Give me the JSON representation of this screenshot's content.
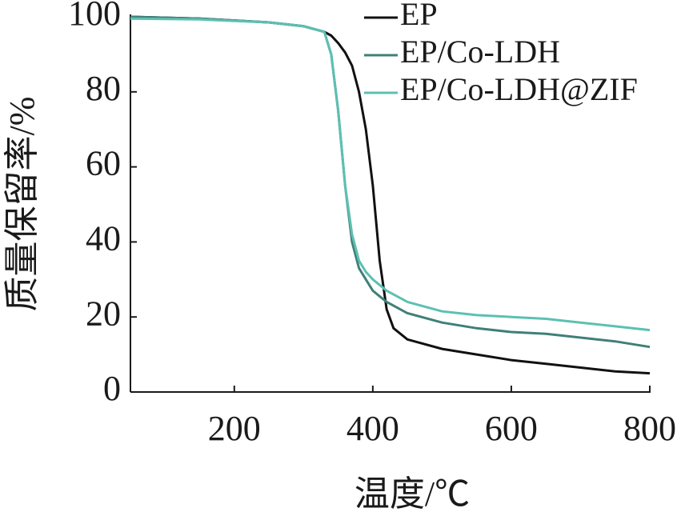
{
  "chart_data": {
    "type": "line",
    "xlabel": "温度/℃",
    "ylabel": "质量保留率/%",
    "x": [
      50,
      150,
      250,
      300,
      330,
      340,
      350,
      360,
      370,
      380,
      390,
      400,
      410,
      420,
      430,
      450,
      500,
      550,
      600,
      650,
      700,
      750,
      800
    ],
    "series": [
      {
        "name": "EP",
        "color": "#111111",
        "values": [
          100,
          99.5,
          98.5,
          97.5,
          96,
          95,
          93,
          90.5,
          87,
          80,
          70,
          55,
          35,
          22,
          17,
          14,
          11.5,
          10,
          8.5,
          7.5,
          6.5,
          5.5,
          5
        ]
      },
      {
        "name": "EP/Co-LDH",
        "color": "#3f8078",
        "values": [
          100,
          99.5,
          98.5,
          97.5,
          96,
          90,
          75,
          55,
          40,
          33,
          30,
          27,
          25.5,
          24,
          23,
          21,
          18.5,
          17,
          16,
          15.5,
          14.5,
          13.5,
          12
        ]
      },
      {
        "name": "EP/Co-LDH@ZIF",
        "color": "#5cc0b2",
        "values": [
          99.5,
          99.3,
          98.5,
          97.5,
          96,
          90,
          75,
          55,
          42,
          35,
          32,
          30,
          28.5,
          27,
          26,
          24,
          21.5,
          20.5,
          20,
          19.5,
          18.5,
          17.5,
          16.5
        ]
      }
    ],
    "xlim": [
      50,
      800
    ],
    "ylim": [
      0,
      100
    ],
    "xticks": [
      200,
      400,
      600,
      800
    ],
    "yticks": [
      0,
      20,
      40,
      60,
      80,
      100
    ],
    "legend": "upper right"
  }
}
